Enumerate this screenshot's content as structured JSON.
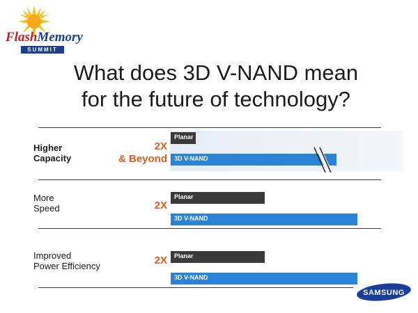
{
  "logo": {
    "flash": "Flash",
    "memory": "Memory",
    "summit": "SUMMIT"
  },
  "title": {
    "line1": "What does 3D V-NAND mean",
    "line2": "for the future of technology?"
  },
  "brand": "SAMSUNG",
  "colors": {
    "planar": "#3a3a3a",
    "vnand": "#2a83d6",
    "multiplier": "#e05a1b"
  },
  "chart_data": {
    "type": "bar",
    "orientation": "horizontal",
    "series_labels": [
      "Planar",
      "3D V-NAND"
    ],
    "rows": [
      {
        "label_line1": "Higher",
        "label_line2": "Capacity",
        "multiplier_line1": "2X",
        "multiplier_line2": "& Beyond",
        "planar": 1,
        "vnand": 6.5,
        "axis_break": true
      },
      {
        "label_line1": "More",
        "label_line2": "Speed",
        "multiplier_line1": "2X",
        "multiplier_line2": "",
        "planar": 1,
        "vnand": 2,
        "axis_break": false
      },
      {
        "label_line1": "Improved",
        "label_line2": "Power Efficiency",
        "multiplier_line1": "2X",
        "multiplier_line2": "",
        "planar": 1,
        "vnand": 2,
        "axis_break": false
      }
    ]
  }
}
